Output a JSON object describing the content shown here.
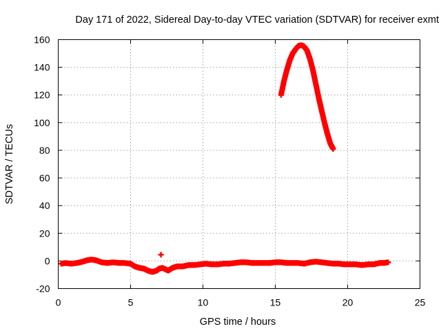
{
  "chart_data": {
    "type": "scatter",
    "title": "Day 171 of 2022, Sidereal Day-to-day VTEC variation (SDTVAR) for receiver exmt",
    "xlabel": "GPS time / hours",
    "ylabel": "SDTVAR / TECUs",
    "xlim": [
      0,
      25
    ],
    "ylim": [
      -20,
      160
    ],
    "xticks": [
      0,
      5,
      10,
      15,
      20,
      25
    ],
    "yticks": [
      -20,
      0,
      20,
      40,
      60,
      80,
      100,
      120,
      140,
      160
    ],
    "grid": true,
    "color": "#ff0000",
    "marker": "plus",
    "series": [
      {
        "name": "SDTVAR",
        "points": [
          [
            0.2,
            -2
          ],
          [
            0.5,
            -1.5
          ],
          [
            0.9,
            -2
          ],
          [
            1.3,
            -1.5
          ],
          [
            1.7,
            -0.5
          ],
          [
            2.0,
            0.5
          ],
          [
            2.3,
            1
          ],
          [
            2.6,
            0.5
          ],
          [
            3.0,
            -1
          ],
          [
            3.4,
            -1.5
          ],
          [
            3.8,
            -1
          ],
          [
            4.2,
            -1.5
          ],
          [
            4.6,
            -1.5
          ],
          [
            5.0,
            -2
          ],
          [
            5.3,
            -4
          ],
          [
            5.6,
            -5
          ],
          [
            5.9,
            -5.5
          ],
          [
            6.2,
            -7
          ],
          [
            6.5,
            -8
          ],
          [
            6.8,
            -7
          ],
          [
            7.0,
            -5.5
          ],
          [
            7.2,
            -5
          ],
          [
            7.6,
            -7
          ],
          [
            7.9,
            -5
          ],
          [
            8.2,
            -4
          ],
          [
            8.6,
            -4
          ],
          [
            9.0,
            -3
          ],
          [
            9.4,
            -3
          ],
          [
            9.8,
            -2.5
          ],
          [
            10.2,
            -2
          ],
          [
            10.6,
            -2.5
          ],
          [
            11.0,
            -2.5
          ],
          [
            11.4,
            -2
          ],
          [
            11.8,
            -2
          ],
          [
            12.2,
            -1.5
          ],
          [
            12.6,
            -1
          ],
          [
            13.0,
            -1
          ],
          [
            13.4,
            -1.5
          ],
          [
            13.8,
            -1.5
          ],
          [
            14.2,
            -1.5
          ],
          [
            14.6,
            -1.5
          ],
          [
            15.0,
            -1
          ],
          [
            15.4,
            -1
          ],
          [
            15.8,
            -1.5
          ],
          [
            16.2,
            -1.5
          ],
          [
            16.6,
            -1.5
          ],
          [
            17.0,
            -2
          ],
          [
            17.4,
            -1
          ],
          [
            17.8,
            -0.5
          ],
          [
            18.2,
            -1
          ],
          [
            18.6,
            -1.5
          ],
          [
            19.0,
            -2
          ],
          [
            19.4,
            -2
          ],
          [
            19.8,
            -2.5
          ],
          [
            20.2,
            -2.5
          ],
          [
            20.6,
            -2.5
          ],
          [
            21.0,
            -3
          ],
          [
            21.4,
            -2.5
          ],
          [
            21.8,
            -2.5
          ],
          [
            22.2,
            -1.5
          ],
          [
            22.5,
            -1.5
          ],
          [
            22.8,
            -1
          ],
          [
            7.1,
            4.5
          ],
          [
            15.4,
            120
          ],
          [
            15.6,
            130
          ],
          [
            15.8,
            138
          ],
          [
            16.0,
            145
          ],
          [
            16.2,
            150
          ],
          [
            16.4,
            153
          ],
          [
            16.6,
            155.5
          ],
          [
            16.8,
            156
          ],
          [
            17.0,
            155
          ],
          [
            17.2,
            152
          ],
          [
            17.4,
            146
          ],
          [
            17.6,
            138
          ],
          [
            17.8,
            128
          ],
          [
            18.0,
            118
          ],
          [
            18.2,
            109
          ],
          [
            18.4,
            100
          ],
          [
            18.6,
            92
          ],
          [
            18.8,
            85
          ],
          [
            19.0,
            81
          ]
        ]
      }
    ]
  }
}
